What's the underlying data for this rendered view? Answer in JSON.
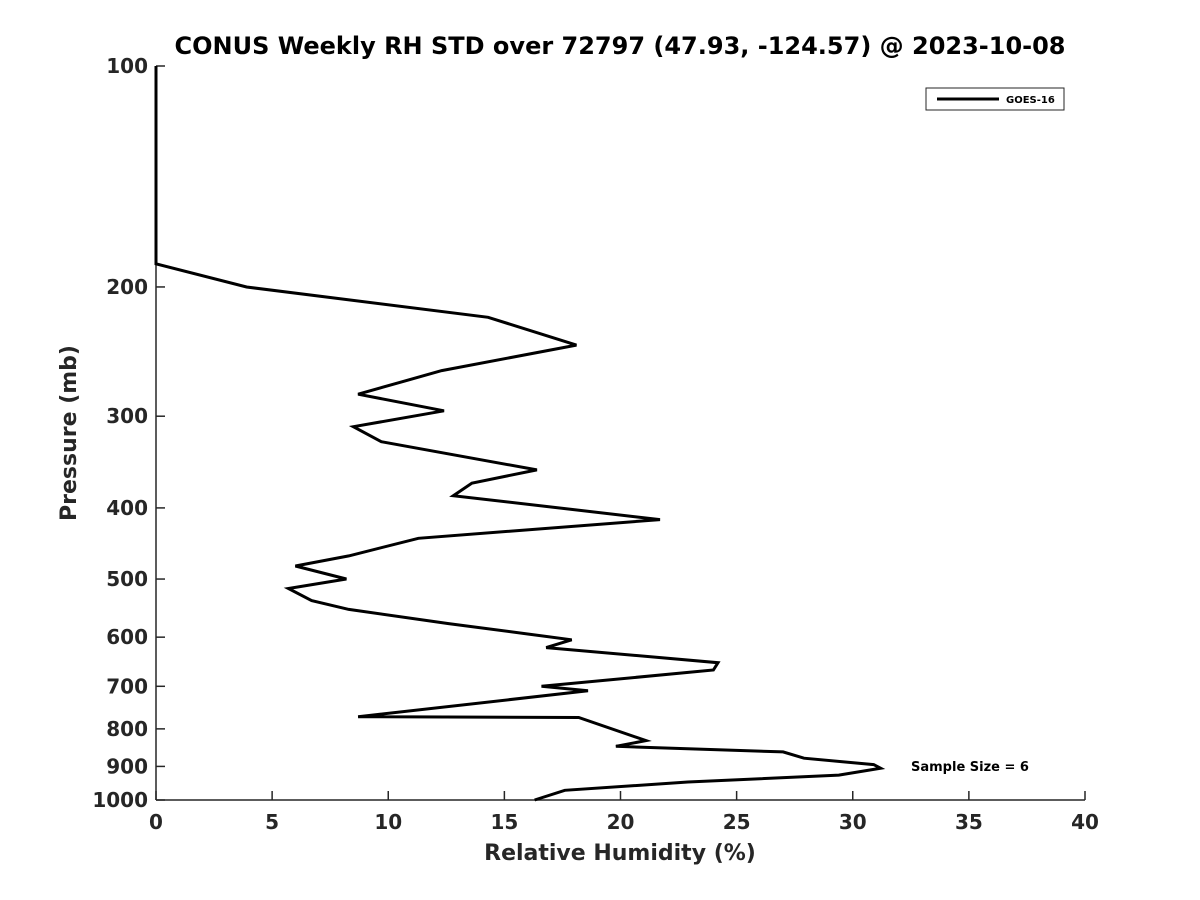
{
  "chart_data": {
    "type": "line",
    "title": "CONUS Weekly RH STD over 72797 (47.93, -124.57) @ 2023-10-08",
    "xlabel": "Relative Humidity (%)",
    "ylabel": "Pressure (mb)",
    "xlim": [
      0,
      40
    ],
    "ylim": [
      100,
      1000
    ],
    "y_scale": "log",
    "y_reversed": true,
    "x_ticks": [
      0,
      5,
      10,
      15,
      20,
      25,
      30,
      35,
      40
    ],
    "y_ticks": [
      100,
      200,
      300,
      400,
      500,
      600,
      700,
      800,
      900,
      1000
    ],
    "grid": false,
    "legend_position": "top-right",
    "annotation": "Sample Size = 6",
    "series": [
      {
        "name": "GOES-16",
        "color": "#000000",
        "x": [
          0,
          0,
          0,
          0,
          3.9,
          14.3,
          18.1,
          12.3,
          8.7,
          12.4,
          8.5,
          9.7,
          16.4,
          13.6,
          12.8,
          21.7,
          11.3,
          8.3,
          6.0,
          8.2,
          5.7,
          6.7,
          8.3,
          12.6,
          17.9,
          16.8,
          24.2,
          24.0,
          16.6,
          18.6,
          8.7,
          18.2,
          21.1,
          19.8,
          27.0,
          27.9,
          30.9,
          31.2,
          29.4,
          22.9,
          17.6,
          16.3
        ],
        "y": [
          100,
          130,
          160,
          186,
          200,
          220,
          240,
          260,
          280,
          295,
          310,
          325,
          355,
          370,
          385,
          415,
          440,
          465,
          480,
          500,
          515,
          535,
          550,
          575,
          605,
          620,
          650,
          665,
          700,
          710,
          770,
          772,
          830,
          845,
          860,
          877,
          895,
          905,
          925,
          945,
          970,
          1000
        ]
      }
    ]
  }
}
